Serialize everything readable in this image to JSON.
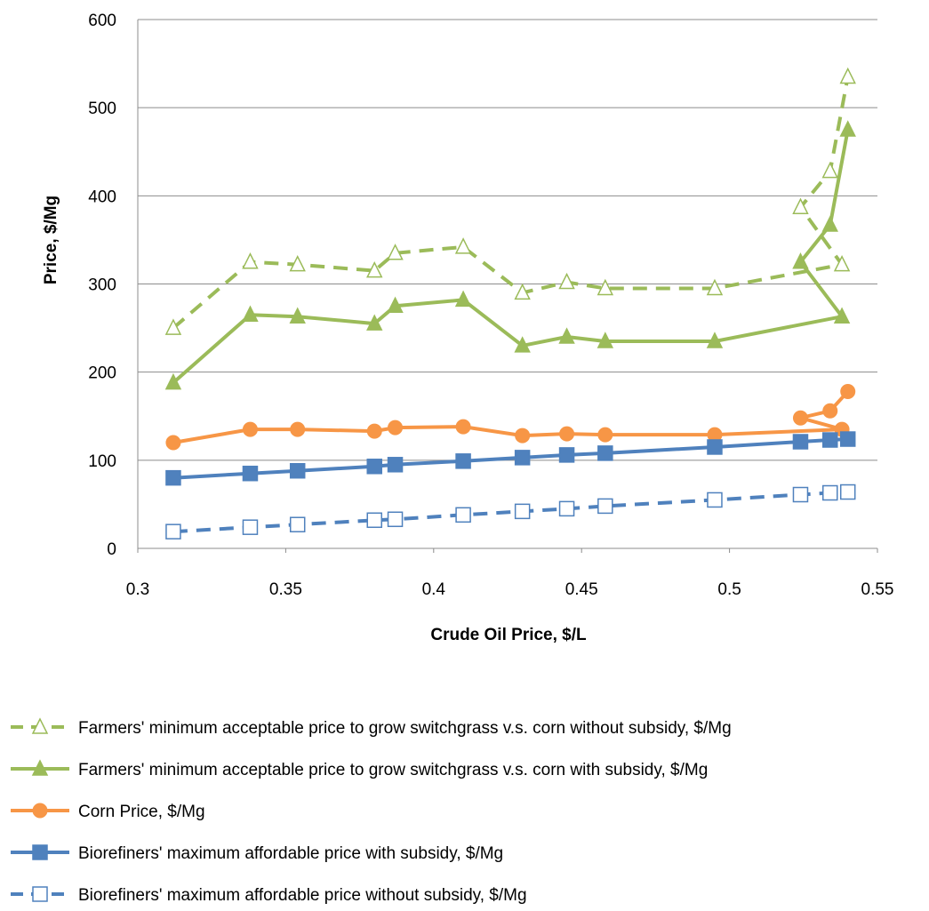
{
  "chart_data": {
    "type": "line",
    "xlabel": "Crude Oil Price, $/L",
    "ylabel": "Price, $/Mg",
    "xlim": [
      0.3,
      0.55
    ],
    "ylim": [
      0,
      600
    ],
    "xticks": [
      "0.3",
      "0.35",
      "0.4",
      "0.45",
      "0.5",
      "0.55"
    ],
    "yticks": [
      "0",
      "100",
      "200",
      "300",
      "400",
      "500",
      "600"
    ],
    "grid": "horizontal",
    "legend_position": "bottom",
    "series": [
      {
        "name": "Farmers' minimum acceptable price to grow switchgrass v.s. corn without subsidy, $/Mg",
        "color": "#9BBB59",
        "line": "dashed",
        "marker": "triangle-open",
        "x": [
          0.312,
          0.338,
          0.354,
          0.38,
          0.387,
          0.41,
          0.43,
          0.445,
          0.458,
          0.495,
          0.538,
          0.524,
          0.534,
          0.54
        ],
        "y": [
          250,
          325,
          322,
          315,
          335,
          342,
          290,
          302,
          295,
          295,
          322,
          387,
          428,
          535
        ]
      },
      {
        "name": "Farmers' minimum acceptable price to grow switchgrass v.s. corn with subsidy,  $/Mg",
        "color": "#9BBB59",
        "line": "solid",
        "marker": "triangle",
        "x": [
          0.312,
          0.338,
          0.354,
          0.38,
          0.387,
          0.41,
          0.43,
          0.445,
          0.458,
          0.495,
          0.538,
          0.524,
          0.534,
          0.54
        ],
        "y": [
          188,
          265,
          263,
          255,
          275,
          282,
          230,
          240,
          235,
          235,
          263,
          325,
          367,
          475
        ]
      },
      {
        "name": "Corn Price, $/Mg",
        "color": "#F79646",
        "line": "solid",
        "marker": "circle",
        "x": [
          0.312,
          0.338,
          0.354,
          0.38,
          0.387,
          0.41,
          0.43,
          0.445,
          0.458,
          0.495,
          0.538,
          0.524,
          0.534,
          0.54
        ],
        "y": [
          120,
          135,
          135,
          133,
          137,
          138,
          128,
          130,
          129,
          129,
          135,
          148,
          156,
          178
        ]
      },
      {
        "name": "Biorefiners'  maximum affordable price with subsidy, $/Mg",
        "color": "#4F81BD",
        "line": "solid",
        "marker": "square",
        "x": [
          0.312,
          0.338,
          0.354,
          0.38,
          0.387,
          0.41,
          0.43,
          0.445,
          0.458,
          0.495,
          0.524,
          0.534,
          0.54
        ],
        "y": [
          80,
          85,
          88,
          93,
          95,
          99,
          103,
          106,
          108,
          115,
          121,
          123,
          124
        ]
      },
      {
        "name": "Biorefiners'  maximum affordable price without subsidy, $/Mg",
        "color": "#4F81BD",
        "line": "dashed",
        "marker": "square-open",
        "x": [
          0.312,
          0.338,
          0.354,
          0.38,
          0.387,
          0.41,
          0.43,
          0.445,
          0.458,
          0.495,
          0.524,
          0.534,
          0.54
        ],
        "y": [
          19,
          24,
          27,
          32,
          33,
          38,
          42,
          45,
          48,
          55,
          61,
          63,
          64
        ]
      }
    ]
  }
}
